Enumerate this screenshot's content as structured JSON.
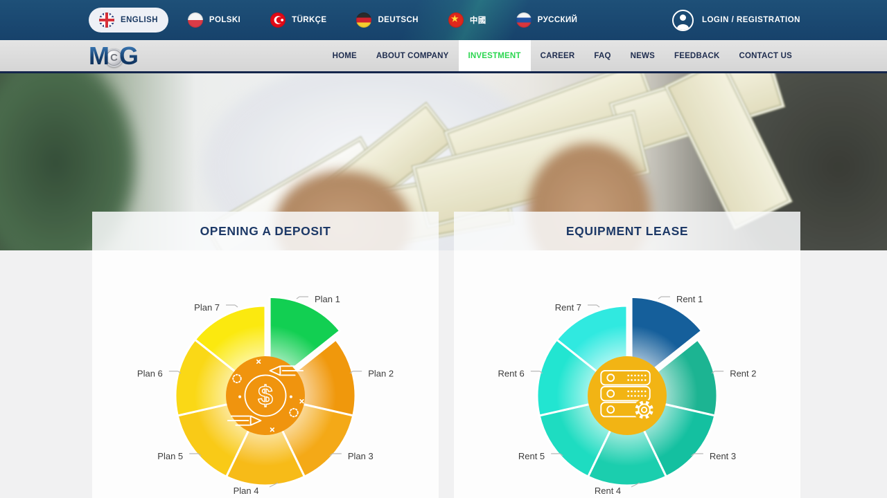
{
  "topbar": {
    "login_label": "LOGIN / REGISTRATION",
    "languages": [
      {
        "label": "ENGLISH",
        "flag": "uk-flag-icon",
        "active": true
      },
      {
        "label": "POLSKI",
        "flag": "poland-flag-icon",
        "active": false
      },
      {
        "label": "TÜRKÇE",
        "flag": "turkey-flag-icon",
        "active": false
      },
      {
        "label": "DEUTSCH",
        "flag": "germany-flag-icon",
        "active": false
      },
      {
        "label": "中國",
        "flag": "china-flag-icon",
        "active": false
      },
      {
        "label": "РУССКИЙ",
        "flag": "russia-flag-icon",
        "active": false
      }
    ]
  },
  "nav": {
    "logo": {
      "m": "M",
      "c": "C",
      "g": "G"
    },
    "active_color": "#2ad64f",
    "items": [
      {
        "label": "HOME",
        "active": false
      },
      {
        "label": "ABOUT COMPANY",
        "active": false
      },
      {
        "label": "INVESTMENT",
        "active": true
      },
      {
        "label": "CAREER",
        "active": false
      },
      {
        "label": "FAQ",
        "active": false
      },
      {
        "label": "NEWS",
        "active": false
      },
      {
        "label": "FEEDBACK",
        "active": false
      },
      {
        "label": "CONTACT US",
        "active": false
      }
    ]
  },
  "sections": [
    {
      "title": "OPENING A DEPOSIT"
    },
    {
      "title": "EQUIPMENT LEASE"
    }
  ],
  "chart_data": [
    {
      "type": "pie",
      "title": "OPENING A DEPOSIT",
      "labels": [
        "Plan 1",
        "Plan 2",
        "Plan 3",
        "Plan 4",
        "Plan 5",
        "Plan 6",
        "Plan 7"
      ],
      "values": [
        1,
        1,
        1,
        1,
        1,
        1,
        1
      ],
      "layout_note": "7 equal slices starting at 12 o'clock clockwise; first slice exploded; callout labels around pie; no legend",
      "colors": [
        "#12cf52",
        "#f0980c",
        "#f4a917",
        "#f7bb18",
        "#f9ca17",
        "#fad816",
        "#fbe90f"
      ],
      "exploded_index": 0,
      "center_color": "#f0940e",
      "center_icon": "money-exchange-icon",
      "label_color": "#3d3d3d"
    },
    {
      "type": "pie",
      "title": "EQUIPMENT LEASE",
      "labels": [
        "Rent 1",
        "Rent 2",
        "Rent 3",
        "Rent 4",
        "Rent 5",
        "Rent 6",
        "Rent 7"
      ],
      "values": [
        1,
        1,
        1,
        1,
        1,
        1,
        1
      ],
      "layout_note": "7 equal slices starting at 12 o'clock clockwise; first slice exploded; callout labels around pie; no legend",
      "colors": [
        "#155f9b",
        "#1cb492",
        "#14c0a0",
        "#1bceae",
        "#1edcc1",
        "#22e5d1",
        "#30e9e0"
      ],
      "exploded_index": 0,
      "center_color": "#f2b414",
      "center_icon": "server-lease-icon",
      "label_color": "#3d3d3d"
    }
  ]
}
